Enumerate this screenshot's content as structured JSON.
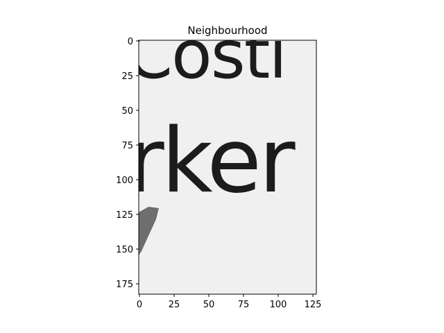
{
  "chart_data": {
    "type": "heatmap",
    "title": "Neighbourhood",
    "xlabel": "",
    "ylabel": "",
    "image_shape": [
      183,
      128
    ],
    "xlim": [
      -0.5,
      127.5
    ],
    "ylim": [
      182.5,
      -0.5
    ],
    "xticks": [
      0,
      25,
      50,
      75,
      100,
      125
    ],
    "yticks": [
      0,
      25,
      50,
      75,
      100,
      125,
      150,
      175
    ],
    "colormap": "gray",
    "image_text_lines": [
      "Costi",
      "rker"
    ],
    "grid": false
  },
  "colors": {
    "background": "#f0f0f0",
    "ink": "#1c1c1c",
    "smudge": "#6e6e6e",
    "axis": "#000000"
  }
}
